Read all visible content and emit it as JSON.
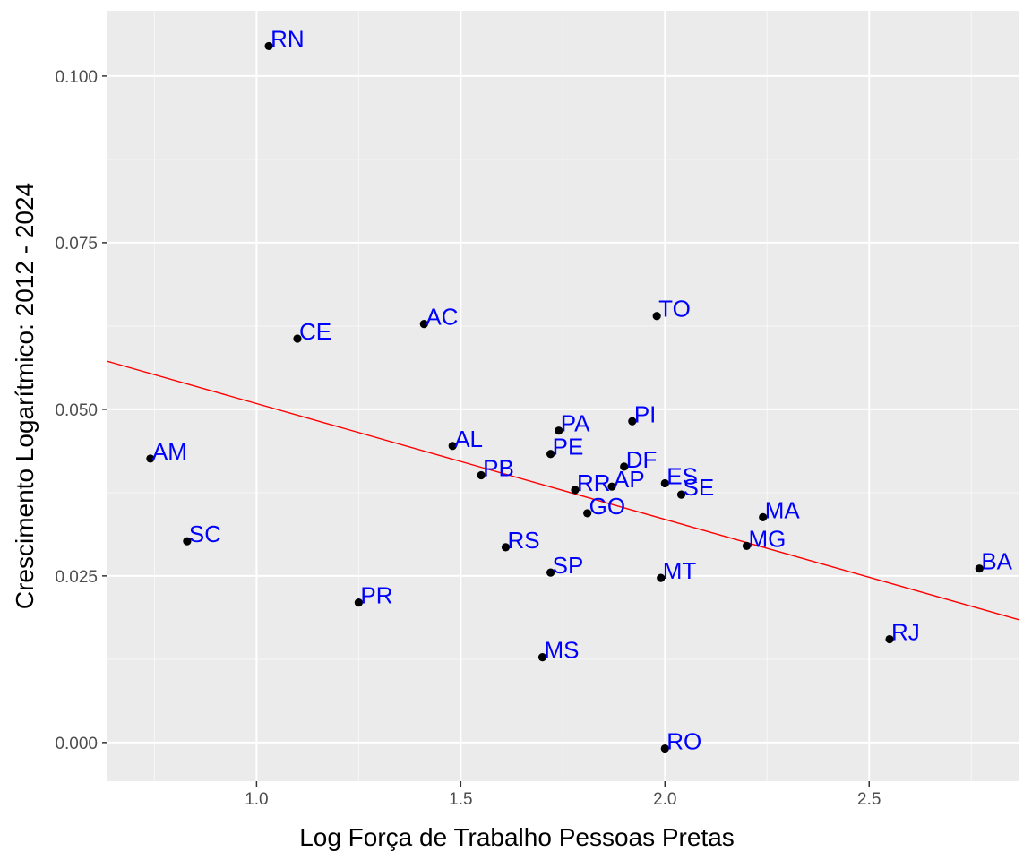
{
  "chart_data": {
    "type": "scatter",
    "xlabel": "Log Força de Trabalho Pessoas Pretas",
    "ylabel": "Crescimento Logarítmico: 2012 - 2024",
    "xlim": [
      0.635,
      2.868
    ],
    "ylim": [
      -0.0058,
      0.1098
    ],
    "x_ticks": [
      1.0,
      1.5,
      2.0,
      2.5
    ],
    "x_tick_labels": [
      "1.0",
      "1.5",
      "2.0",
      "2.5"
    ],
    "y_ticks": [
      0.0,
      0.025,
      0.05,
      0.075,
      0.1
    ],
    "y_tick_labels": [
      "0.000",
      "0.025",
      "0.050",
      "0.075",
      "0.100"
    ],
    "grid": true,
    "points": [
      {
        "label": "RN",
        "x": 1.03,
        "y": 0.1045
      },
      {
        "label": "CE",
        "x": 1.1,
        "y": 0.0606
      },
      {
        "label": "AC",
        "x": 1.41,
        "y": 0.0628
      },
      {
        "label": "TO",
        "x": 1.98,
        "y": 0.064
      },
      {
        "label": "AM",
        "x": 0.74,
        "y": 0.0426
      },
      {
        "label": "SC",
        "x": 0.83,
        "y": 0.0302
      },
      {
        "label": "PR",
        "x": 1.25,
        "y": 0.021
      },
      {
        "label": "AL",
        "x": 1.48,
        "y": 0.0445
      },
      {
        "label": "PB",
        "x": 1.55,
        "y": 0.0401
      },
      {
        "label": "PA",
        "x": 1.74,
        "y": 0.0468
      },
      {
        "label": "PE",
        "x": 1.72,
        "y": 0.0433
      },
      {
        "label": "PI",
        "x": 1.92,
        "y": 0.0482
      },
      {
        "label": "DF",
        "x": 1.9,
        "y": 0.0414
      },
      {
        "label": "RR",
        "x": 1.78,
        "y": 0.0379
      },
      {
        "label": "AP",
        "x": 1.87,
        "y": 0.0384
      },
      {
        "label": "GO",
        "x": 1.81,
        "y": 0.0344
      },
      {
        "label": "ES",
        "x": 2.0,
        "y": 0.0389
      },
      {
        "label": "SE",
        "x": 2.04,
        "y": 0.0372
      },
      {
        "label": "MA",
        "x": 2.24,
        "y": 0.0338
      },
      {
        "label": "MG",
        "x": 2.2,
        "y": 0.0295
      },
      {
        "label": "RS",
        "x": 1.61,
        "y": 0.0293
      },
      {
        "label": "SP",
        "x": 1.72,
        "y": 0.0255
      },
      {
        "label": "MT",
        "x": 1.99,
        "y": 0.0247
      },
      {
        "label": "BA",
        "x": 2.77,
        "y": 0.0261
      },
      {
        "label": "RJ",
        "x": 2.55,
        "y": 0.0155
      },
      {
        "label": "MS",
        "x": 1.7,
        "y": 0.0128
      },
      {
        "label": "RO",
        "x": 2.0,
        "y": -0.0009
      }
    ],
    "trend_line": {
      "x": [
        0.635,
        2.868
      ],
      "y": [
        0.0572,
        0.0184
      ]
    },
    "colors": {
      "panel_background": "#ebebeb",
      "grid_major": "#ffffff",
      "point": "#000000",
      "point_label": "#0000ff",
      "trend_line": "#ff0000"
    }
  }
}
